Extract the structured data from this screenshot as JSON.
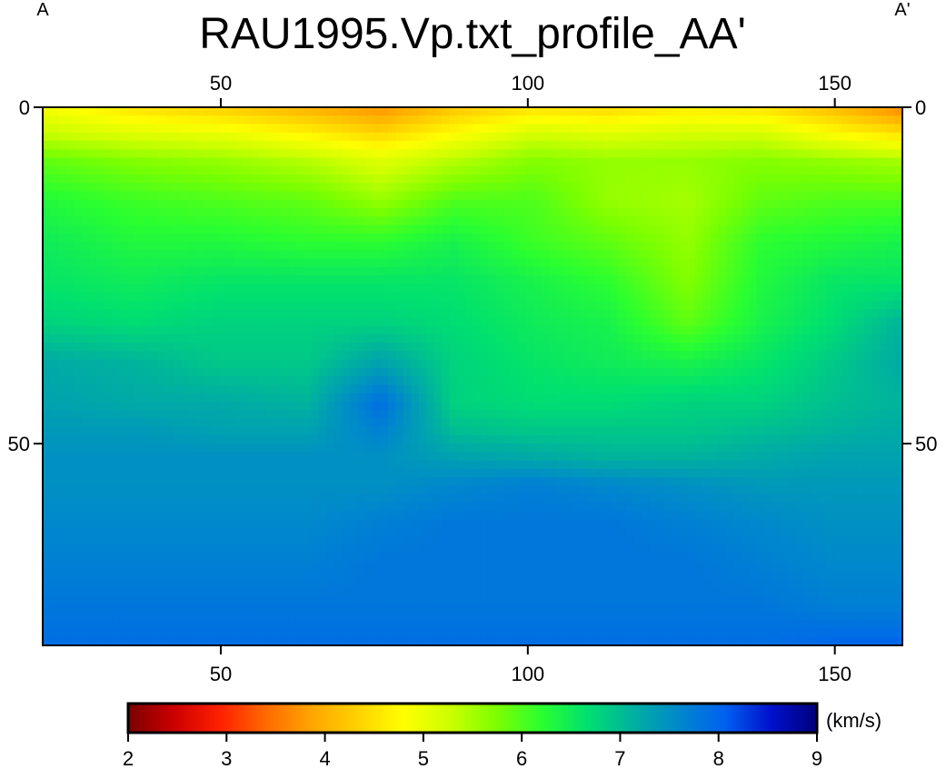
{
  "chart_data": {
    "type": "heatmap",
    "title": "RAU1995.Vp.txt_profile_AA'",
    "profile_start_label": "A",
    "profile_end_label": "A'",
    "x_range": [
      21,
      161
    ],
    "y_range": [
      0,
      80
    ],
    "y_reversed": true,
    "x_ticks": [
      50,
      100,
      150
    ],
    "y_ticks": [
      0,
      50
    ],
    "colorbar": {
      "range": [
        2,
        9
      ],
      "ticks": [
        2,
        3,
        4,
        5,
        6,
        7,
        8,
        9
      ],
      "unit": "(km/s)",
      "colors": [
        "#7a0000",
        "#cc0000",
        "#ff2000",
        "#ff6a00",
        "#ffa500",
        "#ffd200",
        "#ffff00",
        "#ccff00",
        "#7dff00",
        "#2aff30",
        "#00e070",
        "#00b0a0",
        "#0088cc",
        "#0060f0",
        "#0010cc",
        "#00007a"
      ]
    },
    "x_nodes": [
      21,
      36,
      50,
      64,
      76,
      88,
      101,
      113,
      126,
      138,
      150,
      161
    ],
    "y_nodes": [
      0,
      4,
      8,
      14,
      20,
      26,
      32,
      38,
      44,
      48,
      52,
      56,
      62,
      68,
      74,
      80
    ],
    "values": [
      [
        4.9,
        4.5,
        4.3,
        4.0,
        3.7,
        4.2,
        4.5,
        4.4,
        4.6,
        4.5,
        4.1,
        3.6
      ],
      [
        5.3,
        5.1,
        5.0,
        4.7,
        4.4,
        4.8,
        5.2,
        5.1,
        5.2,
        5.2,
        4.8,
        4.5
      ],
      [
        5.9,
        5.7,
        5.6,
        5.4,
        5.1,
        5.4,
        5.7,
        5.6,
        5.6,
        5.7,
        5.6,
        5.5
      ],
      [
        6.3,
        6.1,
        6.0,
        5.9,
        5.6,
        6.0,
        6.0,
        5.6,
        5.5,
        5.9,
        6.0,
        6.0
      ],
      [
        6.5,
        6.3,
        6.3,
        6.2,
        6.2,
        6.4,
        6.1,
        5.9,
        5.6,
        6.2,
        6.3,
        6.4
      ],
      [
        6.6,
        6.5,
        6.6,
        6.6,
        6.6,
        6.6,
        6.4,
        6.2,
        5.7,
        6.3,
        6.6,
        6.6
      ],
      [
        6.8,
        6.7,
        6.8,
        6.8,
        6.8,
        6.7,
        6.5,
        6.4,
        5.9,
        6.4,
        6.7,
        7.1
      ],
      [
        7.2,
        7.1,
        6.9,
        6.9,
        7.3,
        6.8,
        6.6,
        6.5,
        6.4,
        6.6,
        6.9,
        7.2
      ],
      [
        7.3,
        7.2,
        7.2,
        7.1,
        7.9,
        6.8,
        6.7,
        6.7,
        6.8,
        6.8,
        7.0,
        7.1
      ],
      [
        7.4,
        7.4,
        7.3,
        7.3,
        7.7,
        7.0,
        6.9,
        6.9,
        6.9,
        7.0,
        7.1,
        7.2
      ],
      [
        7.5,
        7.5,
        7.5,
        7.5,
        7.5,
        7.3,
        7.2,
        7.1,
        7.1,
        7.2,
        7.3,
        7.3
      ],
      [
        7.5,
        7.5,
        7.5,
        7.5,
        7.5,
        7.6,
        7.7,
        7.6,
        7.5,
        7.4,
        7.4,
        7.4
      ],
      [
        7.6,
        7.6,
        7.6,
        7.6,
        7.7,
        7.8,
        7.8,
        7.8,
        7.7,
        7.6,
        7.5,
        7.5
      ],
      [
        7.7,
        7.7,
        7.7,
        7.7,
        7.8,
        7.8,
        7.8,
        7.8,
        7.8,
        7.7,
        7.6,
        7.6
      ],
      [
        7.8,
        7.8,
        7.8,
        7.8,
        7.8,
        7.8,
        7.8,
        7.8,
        7.8,
        7.8,
        7.7,
        7.7
      ],
      [
        7.9,
        7.9,
        7.9,
        7.9,
        7.9,
        7.9,
        7.9,
        7.9,
        7.9,
        7.9,
        8.0,
        8.0
      ]
    ]
  }
}
